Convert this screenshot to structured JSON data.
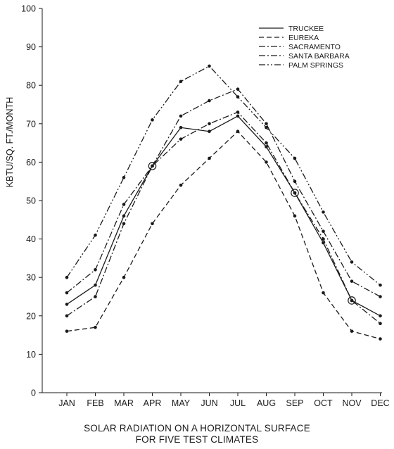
{
  "chart_data": {
    "type": "line",
    "title_lines": [
      "SOLAR RADIATION ON A HORIZONTAL SURFACE",
      "FOR FIVE TEST CLIMATES"
    ],
    "xlabel": "",
    "ylabel": "KBTU/SQ. FT./MONTH",
    "ylim": [
      0,
      100
    ],
    "yticks": [
      0,
      10,
      20,
      30,
      40,
      50,
      60,
      70,
      80,
      90,
      100
    ],
    "categories": [
      "JAN",
      "FEB",
      "MAR",
      "APR",
      "MAY",
      "JUN",
      "JUL",
      "AUG",
      "SEP",
      "OCT",
      "NOV",
      "DEC"
    ],
    "legend_position": "top-right",
    "grid": false,
    "series": [
      {
        "name": "TRUCKEE",
        "dash": "solid",
        "values": [
          23,
          28,
          46,
          59,
          69,
          68,
          72,
          64,
          52,
          39,
          24,
          20
        ]
      },
      {
        "name": "EUREKA",
        "dash": "dashed",
        "values": [
          16,
          17,
          30,
          44,
          54,
          61,
          68,
          60,
          46,
          26,
          16,
          14
        ]
      },
      {
        "name": "SACRAMENTO",
        "dash": "dash-dot",
        "values": [
          20,
          25,
          44,
          59,
          66,
          70,
          73,
          65,
          52,
          40,
          24,
          18
        ]
      },
      {
        "name": "SANTA BARBARA",
        "dash": "dash-dot",
        "values": [
          26,
          32,
          49,
          59,
          72,
          76,
          79,
          70,
          55,
          42,
          29,
          25
        ]
      },
      {
        "name": "PALM SPRINGS",
        "dash": "dash-dot-dot",
        "values": [
          30,
          41,
          56,
          71,
          81,
          85,
          77,
          69,
          61,
          47,
          34,
          28
        ]
      }
    ],
    "annotations": [
      {
        "series": "TRUCKEE",
        "month": "APR",
        "marker": "open-circle"
      },
      {
        "series": "TRUCKEE",
        "month": "SEP",
        "marker": "open-circle"
      },
      {
        "series": "TRUCKEE",
        "month": "NOV",
        "marker": "open-circle"
      }
    ]
  }
}
